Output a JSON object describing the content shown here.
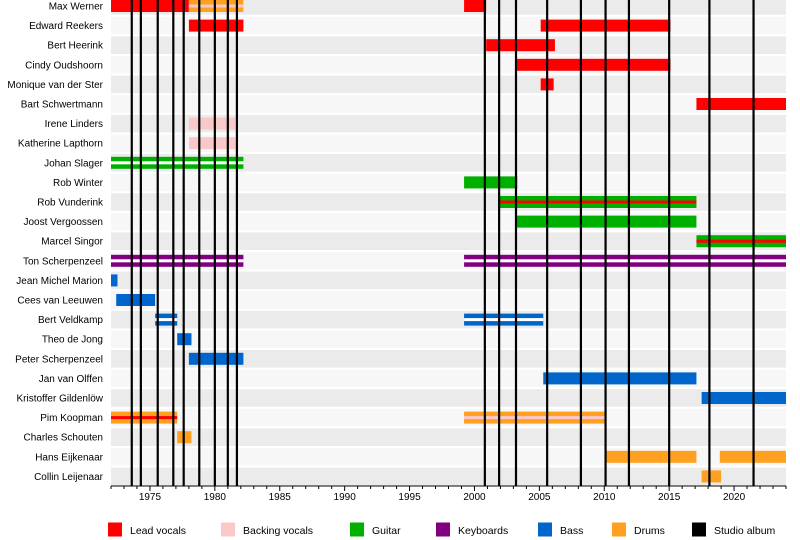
{
  "chart_data": {
    "type": "timeline",
    "xlim": [
      1972.0,
      2024.0
    ],
    "x_ticks": [
      1975,
      1980,
      1985,
      1990,
      1995,
      2000,
      2005,
      2010,
      2015,
      2020
    ],
    "members": [
      "Max Werner",
      "Edward Reekers",
      "Bert Heerink",
      "Cindy Oudshoorn",
      "Monique van der Ster",
      "Bart Schwertmann",
      "Irene Linders",
      "Katherine Lapthorn",
      "Johan Slager",
      "Rob Winter",
      "Rob Vunderink",
      "Joost Vergoossen",
      "Marcel Singor",
      "Ton Scherpenzeel",
      "Jean Michel Marion",
      "Cees van Leeuwen",
      "Bert Veldkamp",
      "Theo de Jong",
      "Peter Scherpenzeel",
      "Jan van Olffen",
      "Kristoffer Gildenlöw",
      "Pim Koopman",
      "Charles Schouten",
      "Hans Eijkenaar",
      "Collin Leijenaar"
    ],
    "roles": [
      {
        "key": "lead",
        "name": "Lead vocals",
        "color": "#ff0000"
      },
      {
        "key": "backing",
        "name": "Backing vocals",
        "color": "#f9c9c9"
      },
      {
        "key": "guitar",
        "name": "Guitar",
        "color": "#00b000"
      },
      {
        "key": "keys",
        "name": "Keyboards",
        "color": "#800080"
      },
      {
        "key": "bass",
        "name": "Bass",
        "color": "#0066cc"
      },
      {
        "key": "drums",
        "name": "Drums",
        "color": "#ffa020"
      },
      {
        "key": "album",
        "name": "Studio album",
        "color": "#000000"
      }
    ],
    "bars": [
      {
        "row": 0,
        "start": 1972.0,
        "end": 1978.0,
        "role": "lead"
      },
      {
        "row": 0,
        "start": 1978.0,
        "end": 1982.2,
        "role": "drums",
        "secondary": "backing"
      },
      {
        "row": 0,
        "start": 1999.2,
        "end": 2000.9,
        "role": "lead"
      },
      {
        "row": 1,
        "start": 1978.0,
        "end": 1982.2,
        "role": "lead"
      },
      {
        "row": 1,
        "start": 2005.1,
        "end": 2015.1,
        "role": "lead"
      },
      {
        "row": 2,
        "start": 2000.9,
        "end": 2006.2,
        "role": "lead"
      },
      {
        "row": 3,
        "start": 2003.2,
        "end": 2015.1,
        "role": "lead"
      },
      {
        "row": 4,
        "start": 2005.1,
        "end": 2006.1,
        "role": "lead"
      },
      {
        "row": 5,
        "start": 2017.1,
        "end": 2024.0,
        "role": "lead"
      },
      {
        "row": 6,
        "start": 1978.0,
        "end": 1981.6,
        "role": "backing"
      },
      {
        "row": 7,
        "start": 1978.0,
        "end": 1981.6,
        "role": "backing"
      },
      {
        "row": 8,
        "start": 1972.0,
        "end": 1982.2,
        "role": "guitar",
        "secondary": "white"
      },
      {
        "row": 9,
        "start": 1999.2,
        "end": 2003.3,
        "role": "guitar"
      },
      {
        "row": 10,
        "start": 2001.9,
        "end": 2017.1,
        "role": "guitar",
        "secondary": "lead"
      },
      {
        "row": 11,
        "start": 2003.2,
        "end": 2017.1,
        "role": "guitar"
      },
      {
        "row": 12,
        "start": 2017.1,
        "end": 2024.0,
        "role": "guitar",
        "secondary": "lead"
      },
      {
        "row": 13,
        "start": 1972.0,
        "end": 1982.2,
        "role": "keys",
        "secondary": "white"
      },
      {
        "row": 13,
        "start": 1999.2,
        "end": 2024.0,
        "role": "keys",
        "secondary": "white"
      },
      {
        "row": 14,
        "start": 1972.0,
        "end": 1972.5,
        "role": "bass"
      },
      {
        "row": 15,
        "start": 1972.4,
        "end": 1975.4,
        "role": "bass"
      },
      {
        "row": 16,
        "start": 1975.4,
        "end": 1977.1,
        "role": "bass",
        "secondary": "white"
      },
      {
        "row": 16,
        "start": 1999.2,
        "end": 2005.3,
        "role": "bass",
        "secondary": "white"
      },
      {
        "row": 17,
        "start": 1977.1,
        "end": 1978.2,
        "role": "bass"
      },
      {
        "row": 18,
        "start": 1978.0,
        "end": 1982.2,
        "role": "bass"
      },
      {
        "row": 19,
        "start": 2005.3,
        "end": 2017.1,
        "role": "bass"
      },
      {
        "row": 20,
        "start": 2017.5,
        "end": 2024.0,
        "role": "bass"
      },
      {
        "row": 21,
        "start": 1972.0,
        "end": 1977.1,
        "role": "drums",
        "secondary": "lead"
      },
      {
        "row": 21,
        "start": 1999.2,
        "end": 2010.1,
        "role": "drums",
        "secondary": "backing"
      },
      {
        "row": 22,
        "start": 1977.1,
        "end": 1978.2,
        "role": "drums"
      },
      {
        "row": 23,
        "start": 2010.1,
        "end": 2017.1,
        "role": "drums"
      },
      {
        "row": 23,
        "start": 2018.9,
        "end": 2024.0,
        "role": "drums"
      },
      {
        "row": 24,
        "start": 2017.5,
        "end": 2019.0,
        "role": "drums"
      }
    ],
    "album_lines": [
      1973.6,
      1974.3,
      1975.6,
      1976.8,
      1977.6,
      1978.8,
      1980.0,
      1981.0,
      1981.7,
      2000.8,
      2001.9,
      2003.2,
      2005.6,
      2008.2,
      2010.1,
      2011.9,
      2015.0,
      2018.1,
      2021.5
    ]
  }
}
